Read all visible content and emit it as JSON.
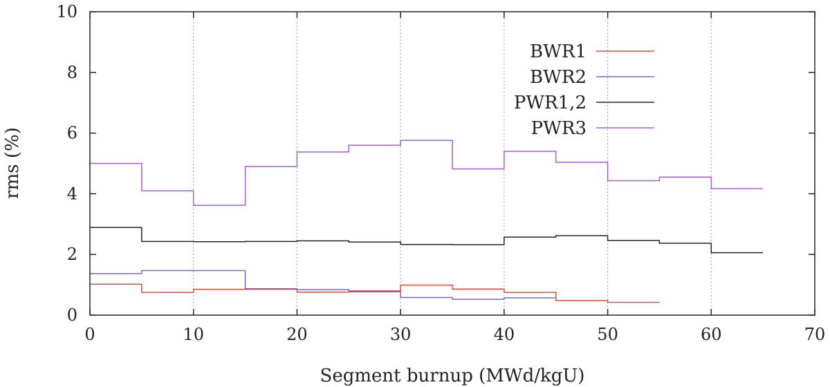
{
  "chart_data": {
    "type": "line",
    "step": true,
    "xlabel": "Segment burnup (MWd/kgU)",
    "ylabel": "rms (%)",
    "xlim": [
      0,
      70
    ],
    "ylim": [
      0,
      10
    ],
    "xticks": [
      0,
      10,
      20,
      30,
      40,
      50,
      60,
      70
    ],
    "yticks": [
      0,
      2,
      4,
      6,
      8,
      10
    ],
    "grid": "vertical dotted",
    "legend_position": "top-right",
    "bin_edges": [
      0,
      5,
      10,
      15,
      20,
      25,
      30,
      35,
      40,
      45,
      50,
      55,
      60,
      65
    ],
    "series": [
      {
        "name": "BWR1",
        "color": "#e8483a",
        "values": [
          1.02,
          0.75,
          0.85,
          0.85,
          0.76,
          0.8,
          0.99,
          0.86,
          0.75,
          0.48,
          0.42
        ]
      },
      {
        "name": "BWR2",
        "color": "#6a6ad0",
        "values": [
          1.37,
          1.47,
          1.47,
          0.87,
          0.84,
          0.77,
          0.58,
          0.52,
          0.57,
          null,
          null
        ]
      },
      {
        "name": "PWR1,2",
        "color": "#222222",
        "values": [
          2.89,
          2.43,
          2.42,
          2.43,
          2.45,
          2.41,
          2.33,
          2.32,
          2.57,
          2.62,
          2.46,
          2.37,
          2.06
        ]
      },
      {
        "name": "PWR3",
        "color": "#a45de0",
        "values": [
          5.0,
          4.1,
          3.62,
          4.9,
          5.38,
          5.6,
          5.76,
          4.82,
          5.4,
          5.04,
          4.43,
          4.55,
          4.17
        ]
      }
    ]
  }
}
